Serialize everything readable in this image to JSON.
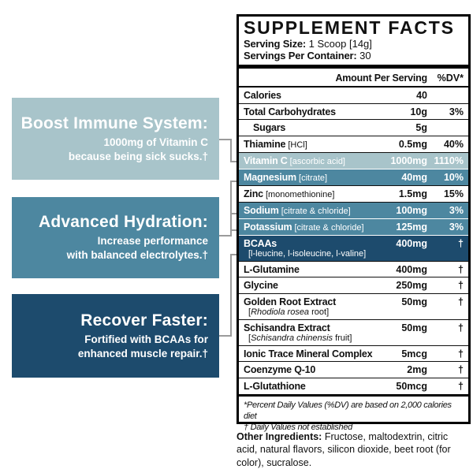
{
  "colors": {
    "highlight_light": "#a8c4ca",
    "highlight_medium": "#4d87a0",
    "highlight_dark": "#1d4b6d",
    "connector_gray": "#9b9b9b",
    "border_black": "#000000",
    "text_white": "#ffffff"
  },
  "callouts": [
    {
      "title": "Boost Immune System:",
      "lines": [
        "1000mg of Vitamin C",
        "because being sick sucks.†"
      ],
      "color": "highlight_light"
    },
    {
      "title": "Advanced Hydration:",
      "lines": [
        "Increase performance",
        "with balanced electrolytes.†"
      ],
      "color": "highlight_medium"
    },
    {
      "title": "Recover Faster:",
      "lines": [
        "Fortified with BCAAs for",
        "enhanced muscle repair.†"
      ],
      "color": "highlight_dark"
    }
  ],
  "facts": {
    "title": "SUPPLEMENT FACTS",
    "serving_size_label": "Serving Size:",
    "serving_size_value": "1 Scoop [14g]",
    "servings_per_container_label": "Servings Per Container:",
    "servings_per_container_value": "30",
    "amount_header": "Amount Per Serving",
    "dv_header": "%DV*",
    "rows": [
      {
        "name": "Calories",
        "amount": "40",
        "dv": ""
      },
      {
        "name": "Total Carbohydrates",
        "amount": "10g",
        "dv": "3%"
      },
      {
        "name": "Sugars",
        "indent": true,
        "amount": "5g",
        "dv": ""
      },
      {
        "name": "Thiamine",
        "sub": "[HCl]",
        "amount": "0.5mg",
        "dv": "40%"
      },
      {
        "name": "Vitamin C",
        "sub": "[ascorbic acid]",
        "amount": "1000mg",
        "dv": "1110%",
        "highlight": "light"
      },
      {
        "name": "Magnesium",
        "sub": "[citrate]",
        "amount": "40mg",
        "dv": "10%",
        "highlight": "medium"
      },
      {
        "name": "Zinc",
        "sub": "[monomethionine]",
        "amount": "1.5mg",
        "dv": "15%"
      },
      {
        "name": "Sodium",
        "sub": "[citrate & chloride]",
        "amount": "100mg",
        "dv": "3%",
        "highlight": "medium"
      },
      {
        "name": "Potassium",
        "sub": "[citrate & chloride]",
        "amount": "125mg",
        "dv": "3%",
        "highlight": "medium"
      },
      {
        "name": "BCAAs",
        "sub2": {
          "pre": "[l-leucine, l-isoleucine, l-valine]"
        },
        "amount": "400mg",
        "dv": "†",
        "highlight": "dark"
      },
      {
        "name": "L-Glutamine",
        "amount": "400mg",
        "dv": "†"
      },
      {
        "name": "Glycine",
        "amount": "250mg",
        "dv": "†"
      },
      {
        "name": "Golden Root Extract",
        "sub2": {
          "pre": "[",
          "italic": "Rhodiola rosea",
          "post": " root]"
        },
        "amount": "50mg",
        "dv": "†"
      },
      {
        "name": "Schisandra Extract",
        "sub2": {
          "pre": "[",
          "italic": "Schisandra chinensis",
          "post": " fruit]"
        },
        "amount": "50mg",
        "dv": "†"
      },
      {
        "name": "Ionic Trace Mineral Complex",
        "amount": "5mcg",
        "dv": "†"
      },
      {
        "name": "Coenzyme Q-10",
        "amount": "2mg",
        "dv": "†"
      },
      {
        "name": "L-Glutathione",
        "amount": "50mcg",
        "dv": "†"
      }
    ],
    "footnote_line1": "*Percent Daily Values (%DV) are based on 2,000 calories diet",
    "footnote_line2": "† Daily Values not established"
  },
  "other_ingredients": {
    "label": "Other Ingredients:",
    "text": "Fructose, maltodextrin, citric acid, natural flavors, silicon dioxide, beet root (for color), sucralose."
  }
}
